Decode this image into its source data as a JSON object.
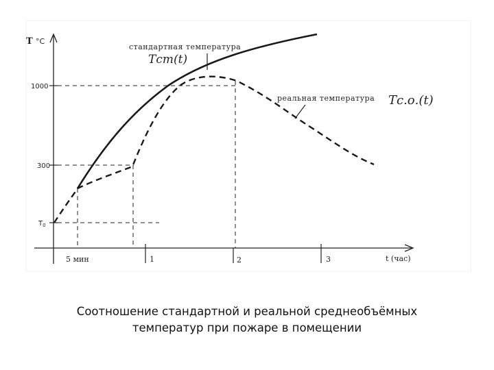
{
  "diagram": {
    "y_axis_label": "T",
    "y_axis_unit": "°C",
    "x_axis_label": "t (час)",
    "y_ticks": [
      "1000",
      "300",
      "T"
    ],
    "y_tick_t0_subscript": "0",
    "x_ticks": [
      "5 мин",
      "1",
      "2",
      "3"
    ],
    "standard_curve_label": "стандартная температура",
    "standard_curve_formula": "Tст(t)",
    "real_curve_label": "реальная температура",
    "real_curve_formula": "Tс.о.(t)"
  },
  "caption": {
    "line1": "Соотношение стандартной и реальной среднеобъёмных",
    "line2": "температур при пожаре в помещении"
  }
}
